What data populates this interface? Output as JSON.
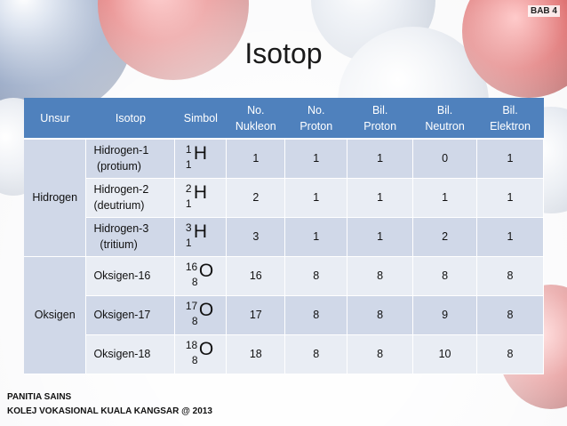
{
  "chapter_label": "BAB 4",
  "title": "Isotop",
  "table": {
    "headers": {
      "unsur": "Unsur",
      "isotop": "Isotop",
      "simbol": "Simbol",
      "no_nukleon": [
        "No.",
        "Nukleon"
      ],
      "no_proton": [
        "No.",
        "Proton"
      ],
      "bil_proton": [
        "Bil.",
        "Proton"
      ],
      "bil_neutron": [
        "Bil.",
        "Neutron"
      ],
      "bil_elektron": [
        "Bil.",
        "Elektron"
      ]
    },
    "groups": [
      {
        "element": "Hidrogen",
        "rows": [
          {
            "isotope": [
              "Hidrogen-1",
              "(protium)"
            ],
            "symbol": {
              "mass": "1",
              "number": "1",
              "el": "H"
            },
            "nukleon": "1",
            "proton_no": "1",
            "proton": "1",
            "neutron": "0",
            "elektron": "1"
          },
          {
            "isotope": [
              "Hidrogen-2",
              "(deutrium)"
            ],
            "symbol": {
              "mass": "2",
              "number": "1",
              "el": "H"
            },
            "nukleon": "2",
            "proton_no": "1",
            "proton": "1",
            "neutron": "1",
            "elektron": "1"
          },
          {
            "isotope": [
              "Hidrogen-3",
              "(tritium)"
            ],
            "symbol": {
              "mass": "3",
              "number": "1",
              "el": "H"
            },
            "nukleon": "3",
            "proton_no": "1",
            "proton": "1",
            "neutron": "2",
            "elektron": "1"
          }
        ]
      },
      {
        "element": "Oksigen",
        "rows": [
          {
            "isotope": [
              "Oksigen-16"
            ],
            "symbol": {
              "mass": "16",
              "number": "8",
              "el": "O"
            },
            "nukleon": "16",
            "proton_no": "8",
            "proton": "8",
            "neutron": "8",
            "elektron": "8"
          },
          {
            "isotope": [
              "Oksigen-17"
            ],
            "symbol": {
              "mass": "17",
              "number": "8",
              "el": "O"
            },
            "nukleon": "17",
            "proton_no": "8",
            "proton": "8",
            "neutron": "9",
            "elektron": "8"
          },
          {
            "isotope": [
              "Oksigen-18"
            ],
            "symbol": {
              "mass": "18",
              "number": "8",
              "el": "O"
            },
            "nukleon": "18",
            "proton_no": "8",
            "proton": "8",
            "neutron": "10",
            "elektron": "8"
          }
        ]
      }
    ]
  },
  "footer": {
    "line1": "PANITIA SAINS",
    "line2": "KOLEJ VOKASIONAL KUALA KANGSAR @ 2013"
  },
  "colors": {
    "header_bg": "#4f81bd",
    "row_dark": "#d0d8e8",
    "row_light": "#e9edf4"
  }
}
